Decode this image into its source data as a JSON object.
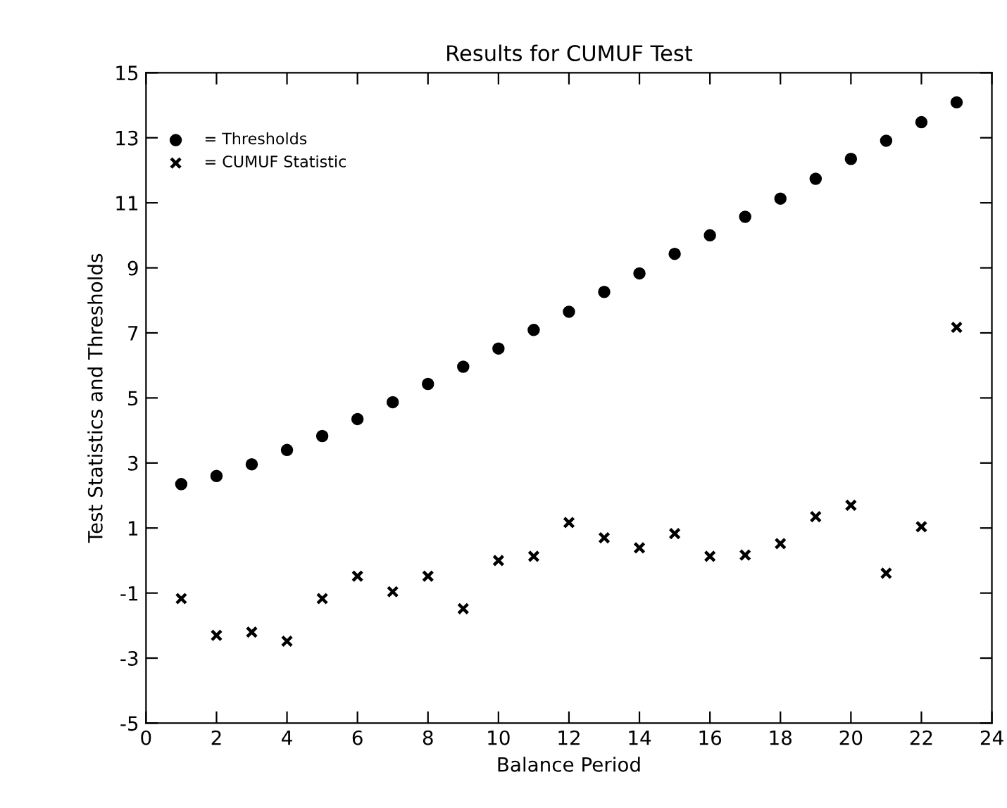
{
  "chart_data": {
    "type": "scatter",
    "title": "Results for CUMUF Test",
    "xlabel": "Balance Period",
    "ylabel": "Test Statistics and Thresholds",
    "x": [
      1,
      2,
      3,
      4,
      5,
      6,
      7,
      8,
      9,
      10,
      11,
      12,
      13,
      14,
      15,
      16,
      17,
      18,
      19,
      20,
      21,
      22,
      23
    ],
    "series": [
      {
        "name": "= Thresholds",
        "color": "#000000",
        "marker": "circle",
        "values": [
          2.35,
          2.6,
          2.96,
          3.4,
          3.83,
          4.35,
          4.87,
          5.43,
          5.96,
          6.52,
          7.09,
          7.65,
          8.26,
          8.83,
          9.43,
          10.0,
          10.57,
          11.13,
          11.74,
          12.35,
          12.91,
          13.48,
          14.09
        ]
      },
      {
        "name": "= CUMUF Statistic",
        "color": "#000000",
        "marker": "cross",
        "values": [
          -1.17,
          -2.3,
          -2.2,
          -2.48,
          -1.17,
          -0.48,
          -0.96,
          -0.48,
          -1.48,
          0.0,
          0.13,
          1.17,
          0.7,
          0.39,
          0.83,
          0.13,
          0.17,
          0.52,
          1.35,
          1.7,
          -0.39,
          1.04,
          7.17
        ]
      }
    ],
    "xlim": [
      0,
      24
    ],
    "xticks": [
      0,
      2,
      4,
      6,
      8,
      10,
      12,
      14,
      16,
      18,
      20,
      22,
      24
    ],
    "ylim": [
      -5,
      15
    ],
    "yticks": [
      -5,
      -3,
      -1,
      1,
      3,
      5,
      7,
      9,
      11,
      13,
      15
    ],
    "grid": false,
    "legend": "top left"
  }
}
